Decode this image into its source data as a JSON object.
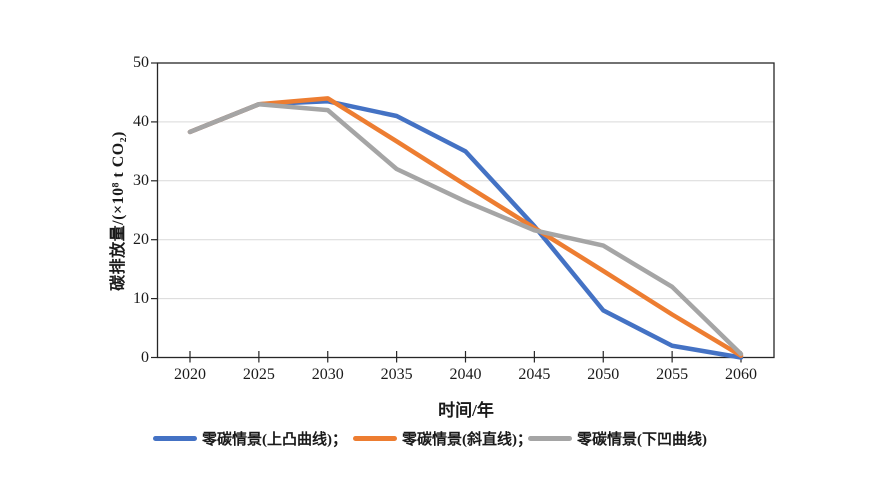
{
  "chart_data": {
    "type": "line",
    "title": "",
    "xlabel": "时间/年",
    "ylabel": "碳排放量/(×10⁸ t CO₂)",
    "x": [
      2020,
      2025,
      2030,
      2035,
      2040,
      2045,
      2050,
      2055,
      2060
    ],
    "yticks": [
      0,
      10,
      20,
      30,
      40,
      50
    ],
    "ylim": [
      0,
      50
    ],
    "grid": "horizontal-only",
    "legend_position": "bottom",
    "series": [
      {
        "name": "零碳情景(上凸曲线)",
        "legend_label": "零碳情景(上凸曲线)；",
        "color": "#4472c4",
        "values": [
          38.3,
          43,
          43.5,
          41,
          35,
          22.3,
          8,
          2,
          0
        ]
      },
      {
        "name": "零碳情景(斜直线)",
        "legend_label": "零碳情景(斜直线)；",
        "color": "#ed7d31",
        "values": [
          38.3,
          43,
          44,
          36.7,
          29.3,
          22,
          14.7,
          7.3,
          0.3
        ]
      },
      {
        "name": "零碳情景(下凹曲线)",
        "legend_label": "零碳情景(下凹曲线)",
        "color": "#a5a5a5",
        "values": [
          38.3,
          43,
          42,
          32,
          26.5,
          21.6,
          19,
          12,
          0.6
        ]
      }
    ],
    "colors": {
      "axis": "#262626",
      "grid": "#d9d9d9",
      "text": "#1a1a1a"
    }
  }
}
